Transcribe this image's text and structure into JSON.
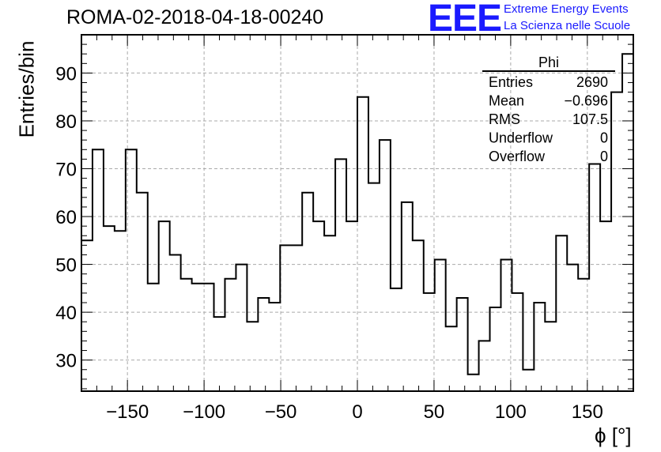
{
  "header": {
    "run_title": "ROMA-02-2018-04-18-00240",
    "logo_text": "EEE",
    "logo_line1": "Extreme Energy Events",
    "logo_line2": "La Scienza nelle Scuole",
    "logo_color": "#1a1aff"
  },
  "stats_box": {
    "title": "Phi",
    "rows": [
      {
        "label": "Entries",
        "value": "2690"
      },
      {
        "label": "Mean",
        "value": "−0.696"
      },
      {
        "label": "RMS",
        "value": "107.5"
      },
      {
        "label": "Underflow",
        "value": "0"
      },
      {
        "label": "Overflow",
        "value": "0"
      }
    ]
  },
  "chart_data": {
    "type": "bar",
    "style": "step-histogram",
    "xlabel": "ϕ [°]",
    "ylabel": "Entries/bin",
    "xlim": [
      -180,
      180
    ],
    "ylim": [
      23.5,
      98
    ],
    "bin_width": 7.2,
    "x_ticks": [
      -150,
      -100,
      -50,
      0,
      50,
      100,
      150
    ],
    "x_tick_labels": [
      "−150",
      "−100",
      "−50",
      "0",
      "50",
      "100",
      "150"
    ],
    "y_ticks": [
      30,
      40,
      50,
      60,
      70,
      80,
      90
    ],
    "y_tick_labels": [
      "30",
      "40",
      "50",
      "60",
      "70",
      "80",
      "90"
    ],
    "grid": true,
    "values": [
      55,
      74,
      58,
      57,
      74,
      65,
      46,
      59,
      52,
      47,
      46,
      46,
      39,
      47,
      50,
      38,
      43,
      42,
      54,
      54,
      65,
      59,
      56,
      72,
      59,
      85,
      67,
      76,
      45,
      63,
      55,
      44,
      51,
      37,
      43,
      27,
      34,
      41,
      51,
      44,
      28,
      42,
      38,
      56,
      50,
      47,
      71,
      59,
      86,
      94
    ]
  }
}
